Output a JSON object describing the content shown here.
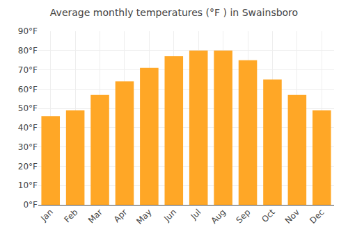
{
  "chart_data": {
    "type": "bar",
    "title": "Average monthly temperatures (°F ) in Swainsboro",
    "categories": [
      "Jan",
      "Feb",
      "Mar",
      "Apr",
      "May",
      "Jun",
      "Jul",
      "Aug",
      "Sep",
      "Oct",
      "Nov",
      "Dec"
    ],
    "values": [
      46,
      49,
      57,
      64,
      71,
      77,
      80,
      80,
      75,
      65,
      57,
      49
    ],
    "color": "#FFA726",
    "ylim": [
      0,
      90
    ],
    "yticks": [
      {
        "value": 0,
        "label": "0°F"
      },
      {
        "value": 10,
        "label": "10°F"
      },
      {
        "value": 20,
        "label": "20°F"
      },
      {
        "value": 30,
        "label": "30°F"
      },
      {
        "value": 40,
        "label": "40°F"
      },
      {
        "value": 50,
        "label": "50°F"
      },
      {
        "value": 60,
        "label": "60°F"
      },
      {
        "value": 70,
        "label": "70°F"
      },
      {
        "value": 80,
        "label": "80°F"
      },
      {
        "value": 90,
        "label": "90°F"
      }
    ],
    "grid": true
  }
}
